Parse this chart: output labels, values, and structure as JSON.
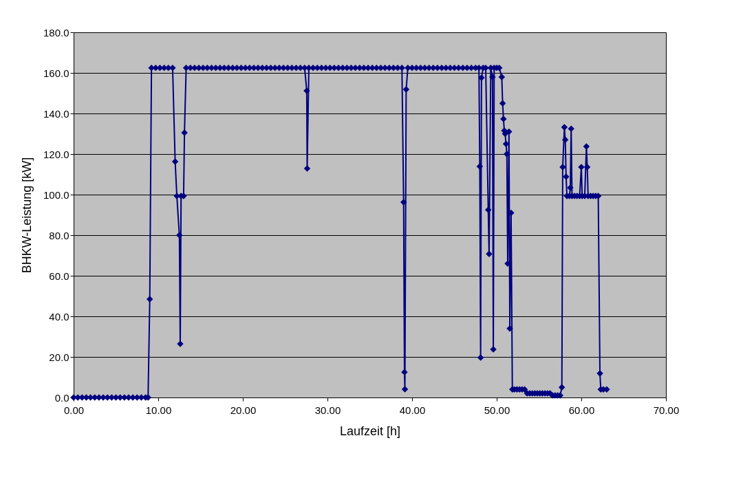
{
  "chart_data": {
    "type": "line",
    "xlabel": "Laufzeit [h]",
    "ylabel": "BHKW-Leistung [kW]",
    "xlim": [
      0,
      70
    ],
    "ylim": [
      0,
      180
    ],
    "xticks": [
      {
        "value": 0,
        "label": "0.00"
      },
      {
        "value": 10,
        "label": "10.00"
      },
      {
        "value": 20,
        "label": "20.00"
      },
      {
        "value": 30,
        "label": "30.00"
      },
      {
        "value": 40,
        "label": "40.00"
      },
      {
        "value": 50,
        "label": "50.00"
      },
      {
        "value": 60,
        "label": "60.00"
      },
      {
        "value": 70,
        "label": "70.00"
      }
    ],
    "yticks": [
      {
        "value": 0,
        "label": "0.0"
      },
      {
        "value": 20,
        "label": "20.0"
      },
      {
        "value": 40,
        "label": "40.0"
      },
      {
        "value": 60,
        "label": "60.0"
      },
      {
        "value": 80,
        "label": "80.0"
      },
      {
        "value": 100,
        "label": "100.0"
      },
      {
        "value": 120,
        "label": "120.0"
      },
      {
        "value": 140,
        "label": "140.0"
      },
      {
        "value": 160,
        "label": "160.0"
      },
      {
        "value": 180,
        "label": "180.0"
      }
    ],
    "grid": "y",
    "legend": false,
    "marker": "diamond",
    "line_style": "solid",
    "series": [
      {
        "color": "#000080",
        "x": [
          0,
          0.5,
          1,
          1.5,
          2,
          2.5,
          3,
          3.5,
          4,
          4.5,
          5,
          5.5,
          6,
          6.5,
          7,
          7.5,
          8,
          8.5,
          8.8,
          9.0,
          9.2,
          9.7,
          10.2,
          10.7,
          11.2,
          11.7,
          12.0,
          12.2,
          12.5,
          12.6,
          12.7,
          13.0,
          13.1,
          13.3,
          13.8,
          14.3,
          14.8,
          15.3,
          15.8,
          16.3,
          16.8,
          17.3,
          17.8,
          18.3,
          18.8,
          19.3,
          19.8,
          20.3,
          20.8,
          21.3,
          21.8,
          22.3,
          22.8,
          23.3,
          23.8,
          24.3,
          24.8,
          25.3,
          25.8,
          26.3,
          26.8,
          27.3,
          27.55,
          27.6,
          27.8,
          28.3,
          28.8,
          29.3,
          29.8,
          30.3,
          30.8,
          31.3,
          31.8,
          32.3,
          32.8,
          33.3,
          33.8,
          34.3,
          34.8,
          35.3,
          35.8,
          36.3,
          36.8,
          37.3,
          37.8,
          38.3,
          38.8,
          39.0,
          39.1,
          39.15,
          39.3,
          39.5,
          40.0,
          40.5,
          41.0,
          41.5,
          42.0,
          42.5,
          43.0,
          43.5,
          44.0,
          44.5,
          45.0,
          45.5,
          46.0,
          46.5,
          47.0,
          47.5,
          47.9,
          48.0,
          48.1,
          48.2,
          48.4,
          48.7,
          49.0,
          49.1,
          49.3,
          49.5,
          49.6,
          49.7,
          50.0,
          50.3,
          50.6,
          50.7,
          50.8,
          50.9,
          51.0,
          51.1,
          51.2,
          51.3,
          51.45,
          51.55,
          51.7,
          51.85,
          52.1,
          52.4,
          52.7,
          53.0,
          53.3,
          53.6,
          53.9,
          54.2,
          54.5,
          54.8,
          55.1,
          55.4,
          55.7,
          56.0,
          56.3,
          56.6,
          56.9,
          57.2,
          57.5,
          57.7,
          57.8,
          58.0,
          58.1,
          58.2,
          58.3,
          58.6,
          58.7,
          58.8,
          58.9,
          59.2,
          59.5,
          59.8,
          60.0,
          60.1,
          60.4,
          60.6,
          60.7,
          60.8,
          61.1,
          61.4,
          61.7,
          62.0,
          62.2,
          62.3,
          62.6,
          63.0
        ],
        "values": [
          0,
          0,
          0,
          0,
          0,
          0,
          0,
          0,
          0,
          0,
          0,
          0,
          0,
          0,
          0,
          0,
          0,
          0,
          0,
          48.5,
          162.5,
          162.5,
          162.5,
          162.5,
          162.5,
          162.5,
          116.3,
          99.3,
          80,
          26.4,
          99.3,
          99.3,
          130.5,
          162.5,
          162.5,
          162.5,
          162.5,
          162.5,
          162.5,
          162.5,
          162.5,
          162.5,
          162.5,
          162.5,
          162.5,
          162.5,
          162.5,
          162.5,
          162.5,
          162.5,
          162.5,
          162.5,
          162.5,
          162.5,
          162.5,
          162.5,
          162.5,
          162.5,
          162.5,
          162.5,
          162.5,
          162.5,
          151.2,
          112.9,
          162.5,
          162.5,
          162.5,
          162.5,
          162.5,
          162.5,
          162.5,
          162.5,
          162.5,
          162.5,
          162.5,
          162.5,
          162.5,
          162.5,
          162.5,
          162.5,
          162.5,
          162.5,
          162.5,
          162.5,
          162.5,
          162.5,
          162.5,
          96.3,
          12.5,
          4.1,
          151.9,
          162.5,
          162.5,
          162.5,
          162.5,
          162.5,
          162.5,
          162.5,
          162.5,
          162.5,
          162.5,
          162.5,
          162.5,
          162.5,
          162.5,
          162.5,
          162.5,
          162.5,
          162.5,
          113.9,
          19.7,
          157.6,
          162.5,
          162.5,
          92.5,
          70.8,
          162.5,
          158,
          23.7,
          162.5,
          162.5,
          162.5,
          158,
          145,
          137.3,
          131.5,
          130,
          125,
          120,
          66,
          131,
          34,
          91,
          4,
          4,
          4,
          4,
          4,
          4,
          2,
          2,
          2,
          2,
          2,
          2,
          2,
          2,
          2,
          2,
          1,
          1,
          1,
          1,
          5,
          113.6,
          133.2,
          127,
          108.8,
          99.3,
          99.3,
          103.4,
          132.5,
          99.3,
          99.3,
          99.3,
          99.3,
          113.6,
          99.3,
          99.3,
          123.7,
          113.6,
          99.3,
          99.3,
          99.3,
          99.3,
          99.3,
          11.9,
          4,
          4,
          4
        ]
      }
    ]
  }
}
